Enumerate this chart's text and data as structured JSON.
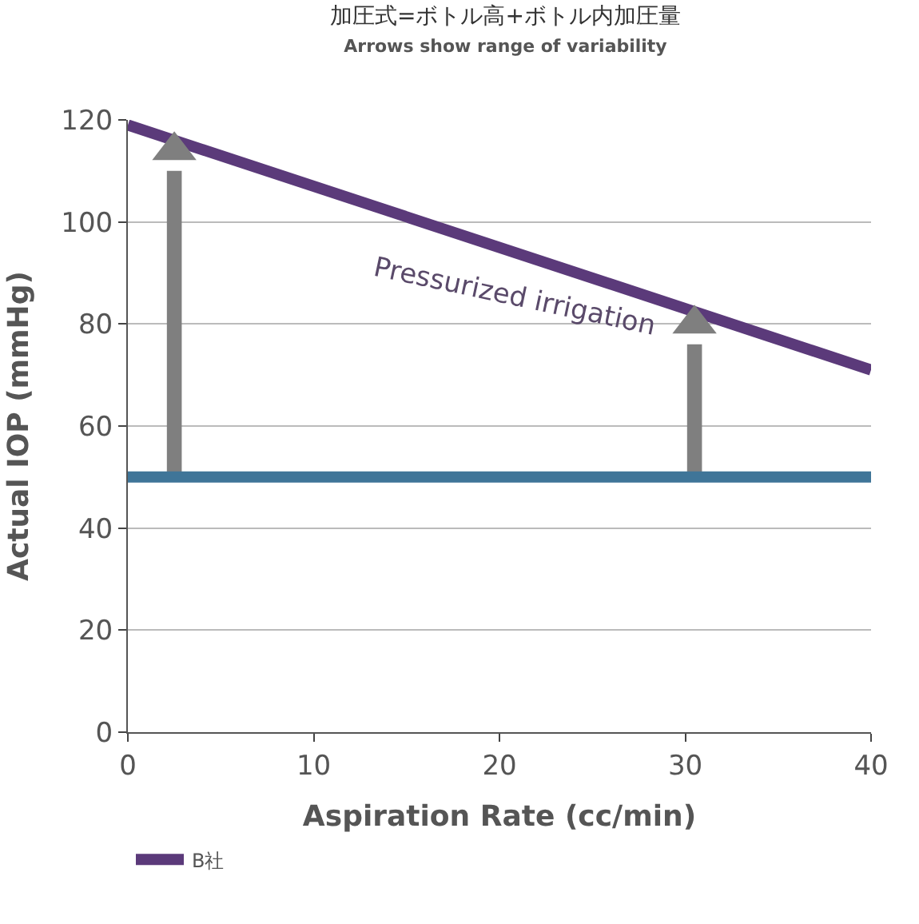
{
  "chart_data": {
    "type": "line",
    "title": "加圧式=ボトル高+ボトル内加圧量",
    "subtitle": "Arrows show range of variability",
    "xlabel": "Aspiration Rate (cc/min)",
    "ylabel": "Actual IOP (mmHg)",
    "series": [
      {
        "name": "B社",
        "color": "#5b3a7a",
        "x": [
          0,
          40
        ],
        "values": [
          119,
          71
        ]
      },
      {
        "color": "#3f7598",
        "x": [
          0,
          40
        ],
        "values": [
          50,
          50
        ]
      },
      {
        "type": "bar",
        "color": "#7f7f7f",
        "x": [
          2.5,
          30.5
        ],
        "base": [
          50,
          50
        ],
        "values": [
          60,
          26
        ]
      },
      {
        "type": "scatter",
        "color": "#7f7f7f",
        "x": [
          2.5,
          30.5
        ],
        "values": [
          114,
          80
        ],
        "marker": "triangle"
      }
    ],
    "annotations": [
      "Pressurized irrigation"
    ],
    "xlim": [
      0,
      40
    ],
    "xticks": [
      0,
      10,
      20,
      30,
      40
    ],
    "ylim": [
      0,
      120
    ],
    "yticks": [
      0,
      20,
      40,
      60,
      80,
      100,
      120
    ],
    "grid": "y",
    "legend": "bottom",
    "marker": "none",
    "line_style": "solid"
  }
}
